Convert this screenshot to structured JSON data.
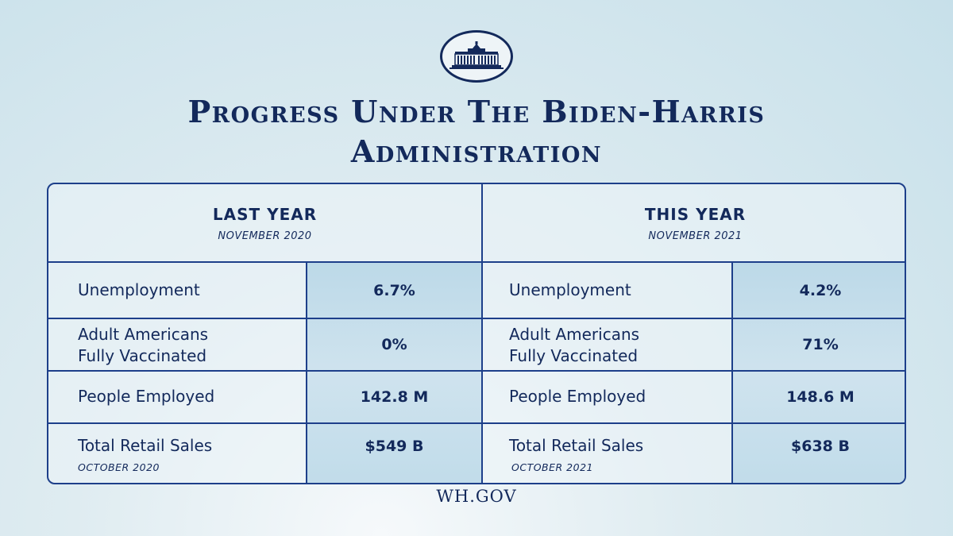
{
  "logo_icon": "white-house-icon",
  "title_line1": "Progress Under The Biden-Harris",
  "title_line2": "Administration",
  "last_year": {
    "heading": "LAST YEAR",
    "date": "NOVEMBER 2020",
    "rows": [
      {
        "label": "Unemployment",
        "value": "6.7%"
      },
      {
        "label_line1": "Adult Americans",
        "label_line2": "Fully Vaccinated",
        "value": "0%"
      },
      {
        "label": "People Employed",
        "value": "142.8 M"
      },
      {
        "label": "Total Retail Sales",
        "note": "OCTOBER 2020",
        "value": "$549 B"
      }
    ]
  },
  "this_year": {
    "heading": "THIS YEAR",
    "date": "NOVEMBER 2021",
    "rows": [
      {
        "label": "Unemployment",
        "value": "4.2%"
      },
      {
        "label_line1": "Adult Americans",
        "label_line2": "Fully Vaccinated",
        "value": "71%"
      },
      {
        "label": "People Employed",
        "value": "148.6 M"
      },
      {
        "label": "Total Retail Sales",
        "note": "OCTOBER 2021",
        "value": "$638 B"
      }
    ]
  },
  "footer": "WH.GOV",
  "colors": {
    "navy": "#13295b",
    "border": "#1d3f8a",
    "value_bg": "#c5dfeb"
  }
}
